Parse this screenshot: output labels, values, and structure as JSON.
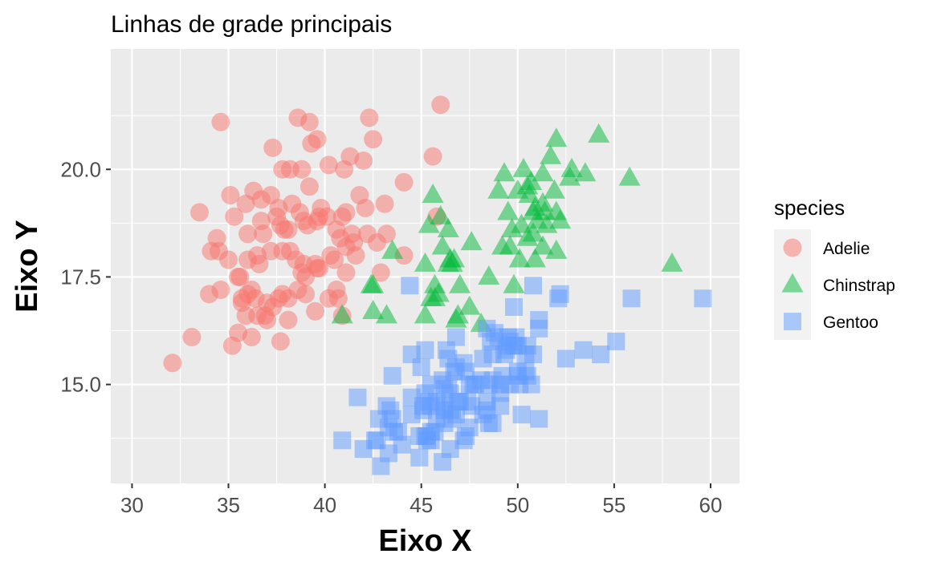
{
  "chart_data": {
    "type": "scatter",
    "title": "Linhas de grade principais",
    "xlabel": "Eixo X",
    "ylabel": "Eixo Y",
    "xlim": [
      28.9,
      61.5
    ],
    "ylim": [
      12.7,
      22.8
    ],
    "xticks": [
      30,
      35,
      40,
      45,
      50,
      55,
      60
    ],
    "yticks": [
      15.0,
      17.5,
      20.0
    ],
    "xtick_labels": [
      "30",
      "35",
      "40",
      "45",
      "50",
      "55",
      "60"
    ],
    "ytick_labels": [
      "15.0",
      "17.5",
      "20.0"
    ],
    "grid": "major",
    "panel_background": "#EBEBEB",
    "grid_color": "#FFFFFF",
    "legend": {
      "title": "species",
      "position": "right"
    },
    "series": [
      {
        "name": "Adelie",
        "shape": "circle",
        "color": "#F8766D",
        "alpha": 0.5,
        "points": [
          [
            32.1,
            15.5
          ],
          [
            33.1,
            16.1
          ],
          [
            33.5,
            19.0
          ],
          [
            34.0,
            17.1
          ],
          [
            34.1,
            18.1
          ],
          [
            34.4,
            18.4
          ],
          [
            34.5,
            18.1
          ],
          [
            34.6,
            17.2
          ],
          [
            34.6,
            21.1
          ],
          [
            35.0,
            17.9
          ],
          [
            35.1,
            19.4
          ],
          [
            35.2,
            15.9
          ],
          [
            35.3,
            18.9
          ],
          [
            35.5,
            16.2
          ],
          [
            35.5,
            17.5
          ],
          [
            35.6,
            17.5
          ],
          [
            35.7,
            16.9
          ],
          [
            35.7,
            17.0
          ],
          [
            35.9,
            16.6
          ],
          [
            35.9,
            19.2
          ],
          [
            36.0,
            17.1
          ],
          [
            36.0,
            17.9
          ],
          [
            36.0,
            18.5
          ],
          [
            36.2,
            16.1
          ],
          [
            36.2,
            17.2
          ],
          [
            36.3,
            19.5
          ],
          [
            36.4,
            17.0
          ],
          [
            36.5,
            16.6
          ],
          [
            36.5,
            18.0
          ],
          [
            36.6,
            17.8
          ],
          [
            36.7,
            18.8
          ],
          [
            36.7,
            19.3
          ],
          [
            36.8,
            18.5
          ],
          [
            36.9,
            16.6
          ],
          [
            37.0,
            16.5
          ],
          [
            37.0,
            16.9
          ],
          [
            37.2,
            18.1
          ],
          [
            37.2,
            19.4
          ],
          [
            37.3,
            16.8
          ],
          [
            37.3,
            20.5
          ],
          [
            37.5,
            18.9
          ],
          [
            37.6,
            17.0
          ],
          [
            37.6,
            19.1
          ],
          [
            37.7,
            16.0
          ],
          [
            37.7,
            18.7
          ],
          [
            37.8,
            17.1
          ],
          [
            37.8,
            18.1
          ],
          [
            37.8,
            20.0
          ],
          [
            37.9,
            18.6
          ],
          [
            38.1,
            16.5
          ],
          [
            38.1,
            17.0
          ],
          [
            38.1,
            18.6
          ],
          [
            38.2,
            18.1
          ],
          [
            38.2,
            20.0
          ],
          [
            38.3,
            19.2
          ],
          [
            38.5,
            17.9
          ],
          [
            38.6,
            17.2
          ],
          [
            38.6,
            21.2
          ],
          [
            38.7,
            19.0
          ],
          [
            38.8,
            17.6
          ],
          [
            38.8,
            20.0
          ],
          [
            38.9,
            17.8
          ],
          [
            38.9,
            18.8
          ],
          [
            39.0,
            17.1
          ],
          [
            39.0,
            17.5
          ],
          [
            39.1,
            18.7
          ],
          [
            39.2,
            19.6
          ],
          [
            39.2,
            21.1
          ],
          [
            39.3,
            20.6
          ],
          [
            39.5,
            16.7
          ],
          [
            39.5,
            17.8
          ],
          [
            39.6,
            17.7
          ],
          [
            39.6,
            18.8
          ],
          [
            39.6,
            20.7
          ],
          [
            39.7,
            17.7
          ],
          [
            39.7,
            18.9
          ],
          [
            39.8,
            19.1
          ],
          [
            40.1,
            18.9
          ],
          [
            40.2,
            17.0
          ],
          [
            40.2,
            20.1
          ],
          [
            40.3,
            18.0
          ],
          [
            40.5,
            17.9
          ],
          [
            40.6,
            17.2
          ],
          [
            40.6,
            18.6
          ],
          [
            40.7,
            17.0
          ],
          [
            40.8,
            18.4
          ],
          [
            40.9,
            16.6
          ],
          [
            40.9,
            18.9
          ],
          [
            41.0,
            20.0
          ],
          [
            41.1,
            17.6
          ],
          [
            41.1,
            18.2
          ],
          [
            41.1,
            19.0
          ],
          [
            41.3,
            20.3
          ],
          [
            41.4,
            18.5
          ],
          [
            41.5,
            18.3
          ],
          [
            41.6,
            18.0
          ],
          [
            41.8,
            19.4
          ],
          [
            42.0,
            20.2
          ],
          [
            42.1,
            19.1
          ],
          [
            42.2,
            18.5
          ],
          [
            42.3,
            21.2
          ],
          [
            42.5,
            20.7
          ],
          [
            42.7,
            18.3
          ],
          [
            42.9,
            17.6
          ],
          [
            43.1,
            19.2
          ],
          [
            43.2,
            18.5
          ],
          [
            44.1,
            18.0
          ],
          [
            44.1,
            19.7
          ],
          [
            45.6,
            20.3
          ],
          [
            45.8,
            18.9
          ],
          [
            46.0,
            21.5
          ]
        ]
      },
      {
        "name": "Chinstrap",
        "shape": "triangle",
        "color": "#00BA38",
        "alpha": 0.5,
        "points": [
          [
            40.9,
            16.6
          ],
          [
            42.4,
            17.3
          ],
          [
            42.5,
            16.7
          ],
          [
            42.5,
            17.3
          ],
          [
            43.2,
            16.6
          ],
          [
            43.5,
            18.1
          ],
          [
            45.2,
            16.6
          ],
          [
            45.2,
            17.8
          ],
          [
            45.4,
            18.7
          ],
          [
            45.5,
            17.0
          ],
          [
            45.6,
            19.4
          ],
          [
            45.7,
            17.0
          ],
          [
            45.7,
            17.3
          ],
          [
            45.9,
            17.1
          ],
          [
            46.0,
            18.9
          ],
          [
            46.1,
            18.2
          ],
          [
            46.4,
            17.8
          ],
          [
            46.4,
            18.6
          ],
          [
            46.5,
            17.9
          ],
          [
            46.6,
            17.8
          ],
          [
            46.7,
            17.9
          ],
          [
            46.8,
            16.5
          ],
          [
            46.9,
            16.6
          ],
          [
            47.0,
            17.3
          ],
          [
            47.5,
            16.8
          ],
          [
            47.6,
            18.3
          ],
          [
            48.1,
            16.4
          ],
          [
            48.5,
            17.5
          ],
          [
            49.0,
            19.5
          ],
          [
            49.2,
            18.2
          ],
          [
            49.3,
            19.9
          ],
          [
            49.5,
            19.0
          ],
          [
            49.6,
            18.2
          ],
          [
            49.7,
            18.6
          ],
          [
            49.8,
            17.3
          ],
          [
            50.0,
            19.5
          ],
          [
            50.1,
            17.9
          ],
          [
            50.2,
            18.7
          ],
          [
            50.3,
            20.0
          ],
          [
            50.5,
            18.4
          ],
          [
            50.5,
            19.6
          ],
          [
            50.6,
            19.4
          ],
          [
            50.7,
            19.7
          ],
          [
            50.8,
            18.5
          ],
          [
            50.8,
            19.0
          ],
          [
            50.9,
            17.9
          ],
          [
            50.9,
            19.1
          ],
          [
            51.0,
            18.8
          ],
          [
            51.3,
            18.2
          ],
          [
            51.3,
            19.2
          ],
          [
            51.3,
            19.9
          ],
          [
            51.4,
            19.0
          ],
          [
            51.5,
            18.7
          ],
          [
            51.7,
            20.3
          ],
          [
            51.9,
            19.5
          ],
          [
            52.0,
            18.1
          ],
          [
            52.0,
            19.0
          ],
          [
            52.0,
            20.7
          ],
          [
            52.2,
            18.8
          ],
          [
            52.7,
            19.8
          ],
          [
            52.8,
            20.0
          ],
          [
            53.5,
            19.9
          ],
          [
            54.2,
            20.8
          ],
          [
            55.8,
            19.8
          ],
          [
            58.0,
            17.8
          ]
        ]
      },
      {
        "name": "Gentoo",
        "shape": "square",
        "color": "#619CFF",
        "alpha": 0.5,
        "points": [
          [
            40.9,
            13.7
          ],
          [
            41.7,
            14.7
          ],
          [
            42.0,
            13.5
          ],
          [
            42.6,
            13.7
          ],
          [
            42.7,
            13.7
          ],
          [
            42.8,
            14.2
          ],
          [
            42.9,
            13.1
          ],
          [
            43.2,
            14.5
          ],
          [
            43.3,
            13.4
          ],
          [
            43.3,
            14.0
          ],
          [
            43.4,
            14.4
          ],
          [
            43.5,
            14.2
          ],
          [
            43.5,
            15.2
          ],
          [
            43.6,
            13.9
          ],
          [
            43.8,
            13.9
          ],
          [
            44.0,
            13.6
          ],
          [
            44.4,
            17.3
          ],
          [
            44.5,
            14.3
          ],
          [
            44.5,
            14.7
          ],
          [
            44.5,
            15.7
          ],
          [
            44.9,
            13.3
          ],
          [
            44.9,
            13.8
          ],
          [
            45.0,
            15.4
          ],
          [
            45.1,
            14.5
          ],
          [
            45.1,
            14.4
          ],
          [
            45.2,
            13.8
          ],
          [
            45.2,
            14.8
          ],
          [
            45.2,
            15.8
          ],
          [
            45.3,
            13.7
          ],
          [
            45.3,
            13.8
          ],
          [
            45.4,
            14.6
          ],
          [
            45.5,
            13.7
          ],
          [
            45.5,
            13.9
          ],
          [
            45.5,
            14.5
          ],
          [
            45.5,
            15.0
          ],
          [
            45.7,
            13.9
          ],
          [
            45.8,
            14.2
          ],
          [
            45.8,
            14.6
          ],
          [
            46.1,
            13.2
          ],
          [
            46.1,
            15.1
          ],
          [
            46.2,
            14.1
          ],
          [
            46.2,
            14.4
          ],
          [
            46.2,
            14.5
          ],
          [
            46.2,
            14.9
          ],
          [
            46.3,
            15.8
          ],
          [
            46.4,
            15.0
          ],
          [
            46.4,
            15.6
          ],
          [
            46.5,
            13.5
          ],
          [
            46.5,
            14.4
          ],
          [
            46.5,
            14.8
          ],
          [
            46.6,
            14.2
          ],
          [
            46.7,
            15.3
          ],
          [
            46.8,
            14.3
          ],
          [
            46.8,
            15.4
          ],
          [
            46.8,
            16.1
          ],
          [
            46.9,
            14.6
          ],
          [
            47.0,
            14.6
          ],
          [
            47.2,
            13.7
          ],
          [
            47.2,
            15.5
          ],
          [
            47.3,
            13.8
          ],
          [
            47.3,
            15.3
          ],
          [
            47.4,
            14.6
          ],
          [
            47.5,
            14.0
          ],
          [
            47.5,
            15.0
          ],
          [
            47.6,
            14.5
          ],
          [
            47.7,
            15.0
          ],
          [
            47.8,
            15.0
          ],
          [
            48.1,
            15.1
          ],
          [
            48.2,
            14.3
          ],
          [
            48.2,
            15.6
          ],
          [
            48.4,
            14.4
          ],
          [
            48.4,
            14.6
          ],
          [
            48.4,
            16.3
          ],
          [
            48.5,
            14.1
          ],
          [
            48.5,
            15.0
          ],
          [
            48.6,
            16.0
          ],
          [
            48.7,
            14.1
          ],
          [
            48.7,
            15.1
          ],
          [
            48.7,
            15.7
          ],
          [
            48.8,
            16.2
          ],
          [
            49.0,
            16.1
          ],
          [
            49.1,
            14.5
          ],
          [
            49.1,
            14.8
          ],
          [
            49.1,
            15.0
          ],
          [
            49.2,
            15.2
          ],
          [
            49.3,
            15.7
          ],
          [
            49.4,
            15.8
          ],
          [
            49.5,
            15.9
          ],
          [
            49.5,
            16.1
          ],
          [
            49.6,
            15.0
          ],
          [
            49.6,
            16.0
          ],
          [
            49.8,
            15.9
          ],
          [
            49.8,
            16.8
          ],
          [
            49.9,
            16.1
          ],
          [
            50.0,
            15.2
          ],
          [
            50.0,
            15.3
          ],
          [
            50.0,
            15.9
          ],
          [
            50.1,
            15.0
          ],
          [
            50.2,
            14.3
          ],
          [
            50.4,
            15.3
          ],
          [
            50.4,
            15.7
          ],
          [
            50.5,
            15.2
          ],
          [
            50.5,
            15.9
          ],
          [
            50.7,
            15.0
          ],
          [
            50.8,
            15.7
          ],
          [
            50.8,
            17.3
          ],
          [
            51.1,
            14.2
          ],
          [
            51.1,
            16.3
          ],
          [
            51.1,
            16.5
          ],
          [
            52.1,
            17.0
          ],
          [
            52.2,
            17.1
          ],
          [
            52.5,
            15.6
          ],
          [
            53.4,
            15.8
          ],
          [
            54.3,
            15.7
          ],
          [
            55.1,
            16.0
          ],
          [
            55.9,
            17.0
          ],
          [
            59.6,
            17.0
          ]
        ]
      }
    ]
  }
}
